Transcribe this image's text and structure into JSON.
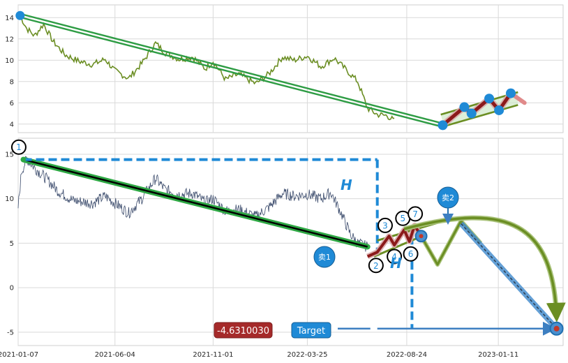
{
  "chart_data": [
    {
      "type": "line",
      "ylim": [
        3.2,
        15.2
      ],
      "y_ticks": [
        "4",
        "6",
        "8",
        "10",
        "12",
        "14"
      ],
      "grid": true,
      "colors": {
        "price": "#6b8e23",
        "trend": "#2e9c44",
        "channel": "#6b8e23",
        "zigzag": "#8b1a1a",
        "marker": "#1f8ad6"
      },
      "price_path": [
        [
          "2021-01-10",
          14.2
        ],
        [
          "2021-01-20",
          13.0
        ],
        [
          "2021-02-01",
          12.3
        ],
        [
          "2021-02-15",
          13.4
        ],
        [
          "2021-03-01",
          11.8
        ],
        [
          "2021-03-20",
          10.5
        ],
        [
          "2021-04-10",
          9.9
        ],
        [
          "2021-05-01",
          9.6
        ],
        [
          "2021-05-20",
          10.1
        ],
        [
          "2021-06-04",
          9.0
        ],
        [
          "2021-06-25",
          8.3
        ],
        [
          "2021-07-15",
          9.7
        ],
        [
          "2021-08-05",
          11.6
        ],
        [
          "2021-08-20",
          10.7
        ],
        [
          "2021-09-10",
          10.1
        ],
        [
          "2021-10-01",
          10.3
        ],
        [
          "2021-10-20",
          9.2
        ],
        [
          "2021-11-01",
          9.9
        ],
        [
          "2021-11-20",
          8.2
        ],
        [
          "2021-12-10",
          8.7
        ],
        [
          "2022-01-05",
          7.8
        ],
        [
          "2022-01-25",
          8.7
        ],
        [
          "2022-02-15",
          10.3
        ],
        [
          "2022-03-05",
          10.0
        ],
        [
          "2022-03-25",
          10.4
        ],
        [
          "2022-04-15",
          9.4
        ],
        [
          "2022-05-05",
          10.2
        ],
        [
          "2022-05-25",
          9.0
        ],
        [
          "2022-06-10",
          8.0
        ],
        [
          "2022-06-25",
          5.5
        ],
        [
          "2022-07-10",
          4.9
        ],
        [
          "2022-07-25",
          4.8
        ],
        [
          "2022-08-05",
          4.3
        ]
      ],
      "trend_line": [
        [
          "2021-01-10",
          14.2
        ],
        [
          "2022-10-18",
          3.9
        ]
      ],
      "channel_upper": [
        [
          "2022-10-15",
          4.9
        ],
        [
          "2023-02-10",
          7.0
        ]
      ],
      "channel_lower": [
        [
          "2022-10-20",
          3.8
        ],
        [
          "2023-02-10",
          5.8
        ]
      ],
      "zigzag": [
        [
          "2022-10-18",
          3.9
        ],
        [
          "2022-11-20",
          5.6
        ],
        [
          "2022-12-01",
          5.0
        ],
        [
          "2022-12-28",
          6.4
        ],
        [
          "2023-01-12",
          5.3
        ],
        [
          "2023-01-30",
          6.9
        ],
        [
          "2023-02-20",
          6.0
        ]
      ]
    },
    {
      "type": "line",
      "ylim": [
        -6.5,
        16.8
      ],
      "y_ticks": [
        "-5",
        "0",
        "5",
        "10",
        "15"
      ],
      "x_ticks": [
        "2021-01-07",
        "2021-06-04",
        "2021-11-01",
        "2022-03-25",
        "2022-08-24",
        "2023-01-11"
      ],
      "grid": true,
      "colors": {
        "price": "#3a4a6b",
        "trend": "#2ea844",
        "dashed": "#1f8ad6",
        "zigzag": "#8b1a1a",
        "projection": "#6b8e23",
        "target": "#3d7fc1"
      },
      "price_path": [
        [
          "2021-01-07",
          9.0
        ],
        [
          "2021-01-12",
          13.0
        ],
        [
          "2021-01-20",
          14.5
        ],
        [
          "2021-02-01",
          13.5
        ],
        [
          "2021-02-20",
          12.2
        ],
        [
          "2021-03-10",
          10.8
        ],
        [
          "2021-04-01",
          9.8
        ],
        [
          "2021-05-01",
          9.5
        ],
        [
          "2021-05-20",
          10.3
        ],
        [
          "2021-06-04",
          9.5
        ],
        [
          "2021-06-25",
          8.4
        ],
        [
          "2021-07-15",
          10.0
        ],
        [
          "2021-08-05",
          12.3
        ],
        [
          "2021-08-20",
          11.0
        ],
        [
          "2021-09-10",
          10.5
        ],
        [
          "2021-10-01",
          10.6
        ],
        [
          "2021-10-20",
          9.6
        ],
        [
          "2021-11-01",
          10.0
        ],
        [
          "2021-11-20",
          8.6
        ],
        [
          "2021-12-10",
          8.8
        ],
        [
          "2022-01-05",
          8.0
        ],
        [
          "2022-01-25",
          9.0
        ],
        [
          "2022-02-15",
          10.6
        ],
        [
          "2022-03-05",
          10.3
        ],
        [
          "2022-03-25",
          10.5
        ],
        [
          "2022-04-15",
          10.0
        ],
        [
          "2022-04-30",
          10.7
        ],
        [
          "2022-05-15",
          8.5
        ],
        [
          "2022-05-30",
          6.0
        ],
        [
          "2022-06-10",
          5.0
        ],
        [
          "2022-06-25",
          4.6
        ]
      ],
      "trend_line": [
        [
          "2021-01-15",
          14.4
        ],
        [
          "2022-06-25",
          4.6
        ]
      ],
      "dashed_top": [
        [
          "2021-01-15",
          14.4
        ],
        [
          "2022-07-10",
          14.4
        ]
      ],
      "dashed_vertical_1": [
        [
          "2022-07-10",
          14.4
        ],
        [
          "2022-07-10",
          3.5
        ]
      ],
      "dashed_vertical_2": [
        [
          "2022-09-01",
          5.8
        ],
        [
          "2022-09-01",
          -4.6
        ]
      ],
      "channel_upper": [
        [
          "2022-07-10",
          5.3
        ],
        [
          "2022-10-15",
          7.4
        ]
      ],
      "channel_lower": [
        [
          "2022-07-05",
          3.5
        ],
        [
          "2022-09-10",
          5.6
        ]
      ],
      "zigzag": [
        [
          "2022-06-25",
          3.5
        ],
        [
          "2022-07-10",
          4.0
        ],
        [
          "2022-07-28",
          5.8
        ],
        [
          "2022-08-05",
          4.8
        ],
        [
          "2022-08-20",
          6.5
        ],
        [
          "2022-08-28",
          5.2
        ],
        [
          "2022-09-05",
          7.0
        ],
        [
          "2022-09-15",
          5.8
        ]
      ],
      "projection": [
        [
          "2022-09-15",
          5.8
        ],
        [
          "2022-10-10",
          2.6
        ],
        [
          "2022-11-15",
          7.5
        ],
        [
          "2022-12-15",
          5.0
        ]
      ],
      "sell2_line": [
        [
          "2022-11-15",
          7.2
        ],
        [
          "2023-04-10",
          -4.6
        ]
      ],
      "target_line": [
        [
          "2022-07-10",
          -4.6
        ],
        [
          "2023-04-05",
          -4.6
        ]
      ],
      "target_point": [
        "2023-04-10",
        -4.6
      ],
      "labels": {
        "points": [
          "1",
          "2",
          "3",
          "4",
          "5",
          "6",
          "7"
        ],
        "H": "H",
        "sell1": "卖1",
        "sell2": "卖2",
        "value_box": "-4.6310030",
        "target_box": "Target"
      }
    }
  ]
}
